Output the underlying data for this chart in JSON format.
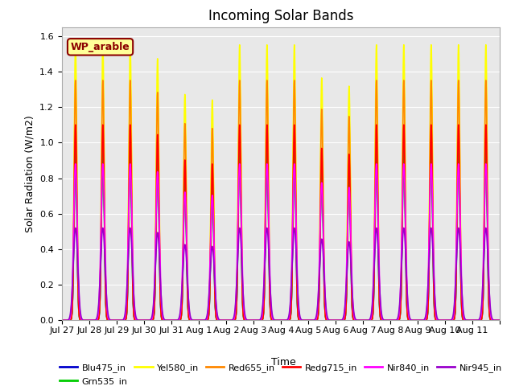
{
  "title": "Incoming Solar Bands",
  "xlabel": "Time",
  "ylabel": "Solar Radiation (W/m2)",
  "ylim": [
    0,
    1.65
  ],
  "yticks": [
    0.0,
    0.2,
    0.4,
    0.6,
    0.8,
    1.0,
    1.2,
    1.4,
    1.6
  ],
  "annotation": "WP_arable",
  "annotation_color": "#8B0000",
  "annotation_bg": "#FFFF99",
  "n_days": 16,
  "lines": [
    {
      "label": "Blu475_in",
      "color": "#0000CC",
      "lw": 1.2,
      "scale": 1.0
    },
    {
      "label": "Grn535_in",
      "color": "#00CC00",
      "lw": 1.2,
      "scale": 1.02
    },
    {
      "label": "Yel580_in",
      "color": "#FFFF00",
      "lw": 1.2,
      "scale": 1.55
    },
    {
      "label": "Red655_in",
      "color": "#FF8800",
      "lw": 1.2,
      "scale": 1.35
    },
    {
      "label": "Redg715_in",
      "color": "#FF0000",
      "lw": 1.2,
      "scale": 1.1
    },
    {
      "label": "Nir840_in",
      "color": "#FF00FF",
      "lw": 1.2,
      "scale": 0.88
    },
    {
      "label": "Nir945_in",
      "color": "#9900CC",
      "lw": 1.2,
      "scale": 0.52
    }
  ],
  "x_tick_labels": [
    "Jul 27",
    "Jul 28",
    "Jul 29",
    "Jul 30",
    "Jul 31",
    "Aug 1",
    "Aug 2",
    "Aug 3",
    "Aug 4",
    "Aug 5",
    "Aug 6",
    "Aug 7",
    "Aug 8",
    "Aug 9",
    "Aug 10",
    "Aug 11"
  ],
  "bg_color": "#E8E8E8",
  "fig_bg": "#FFFFFF"
}
